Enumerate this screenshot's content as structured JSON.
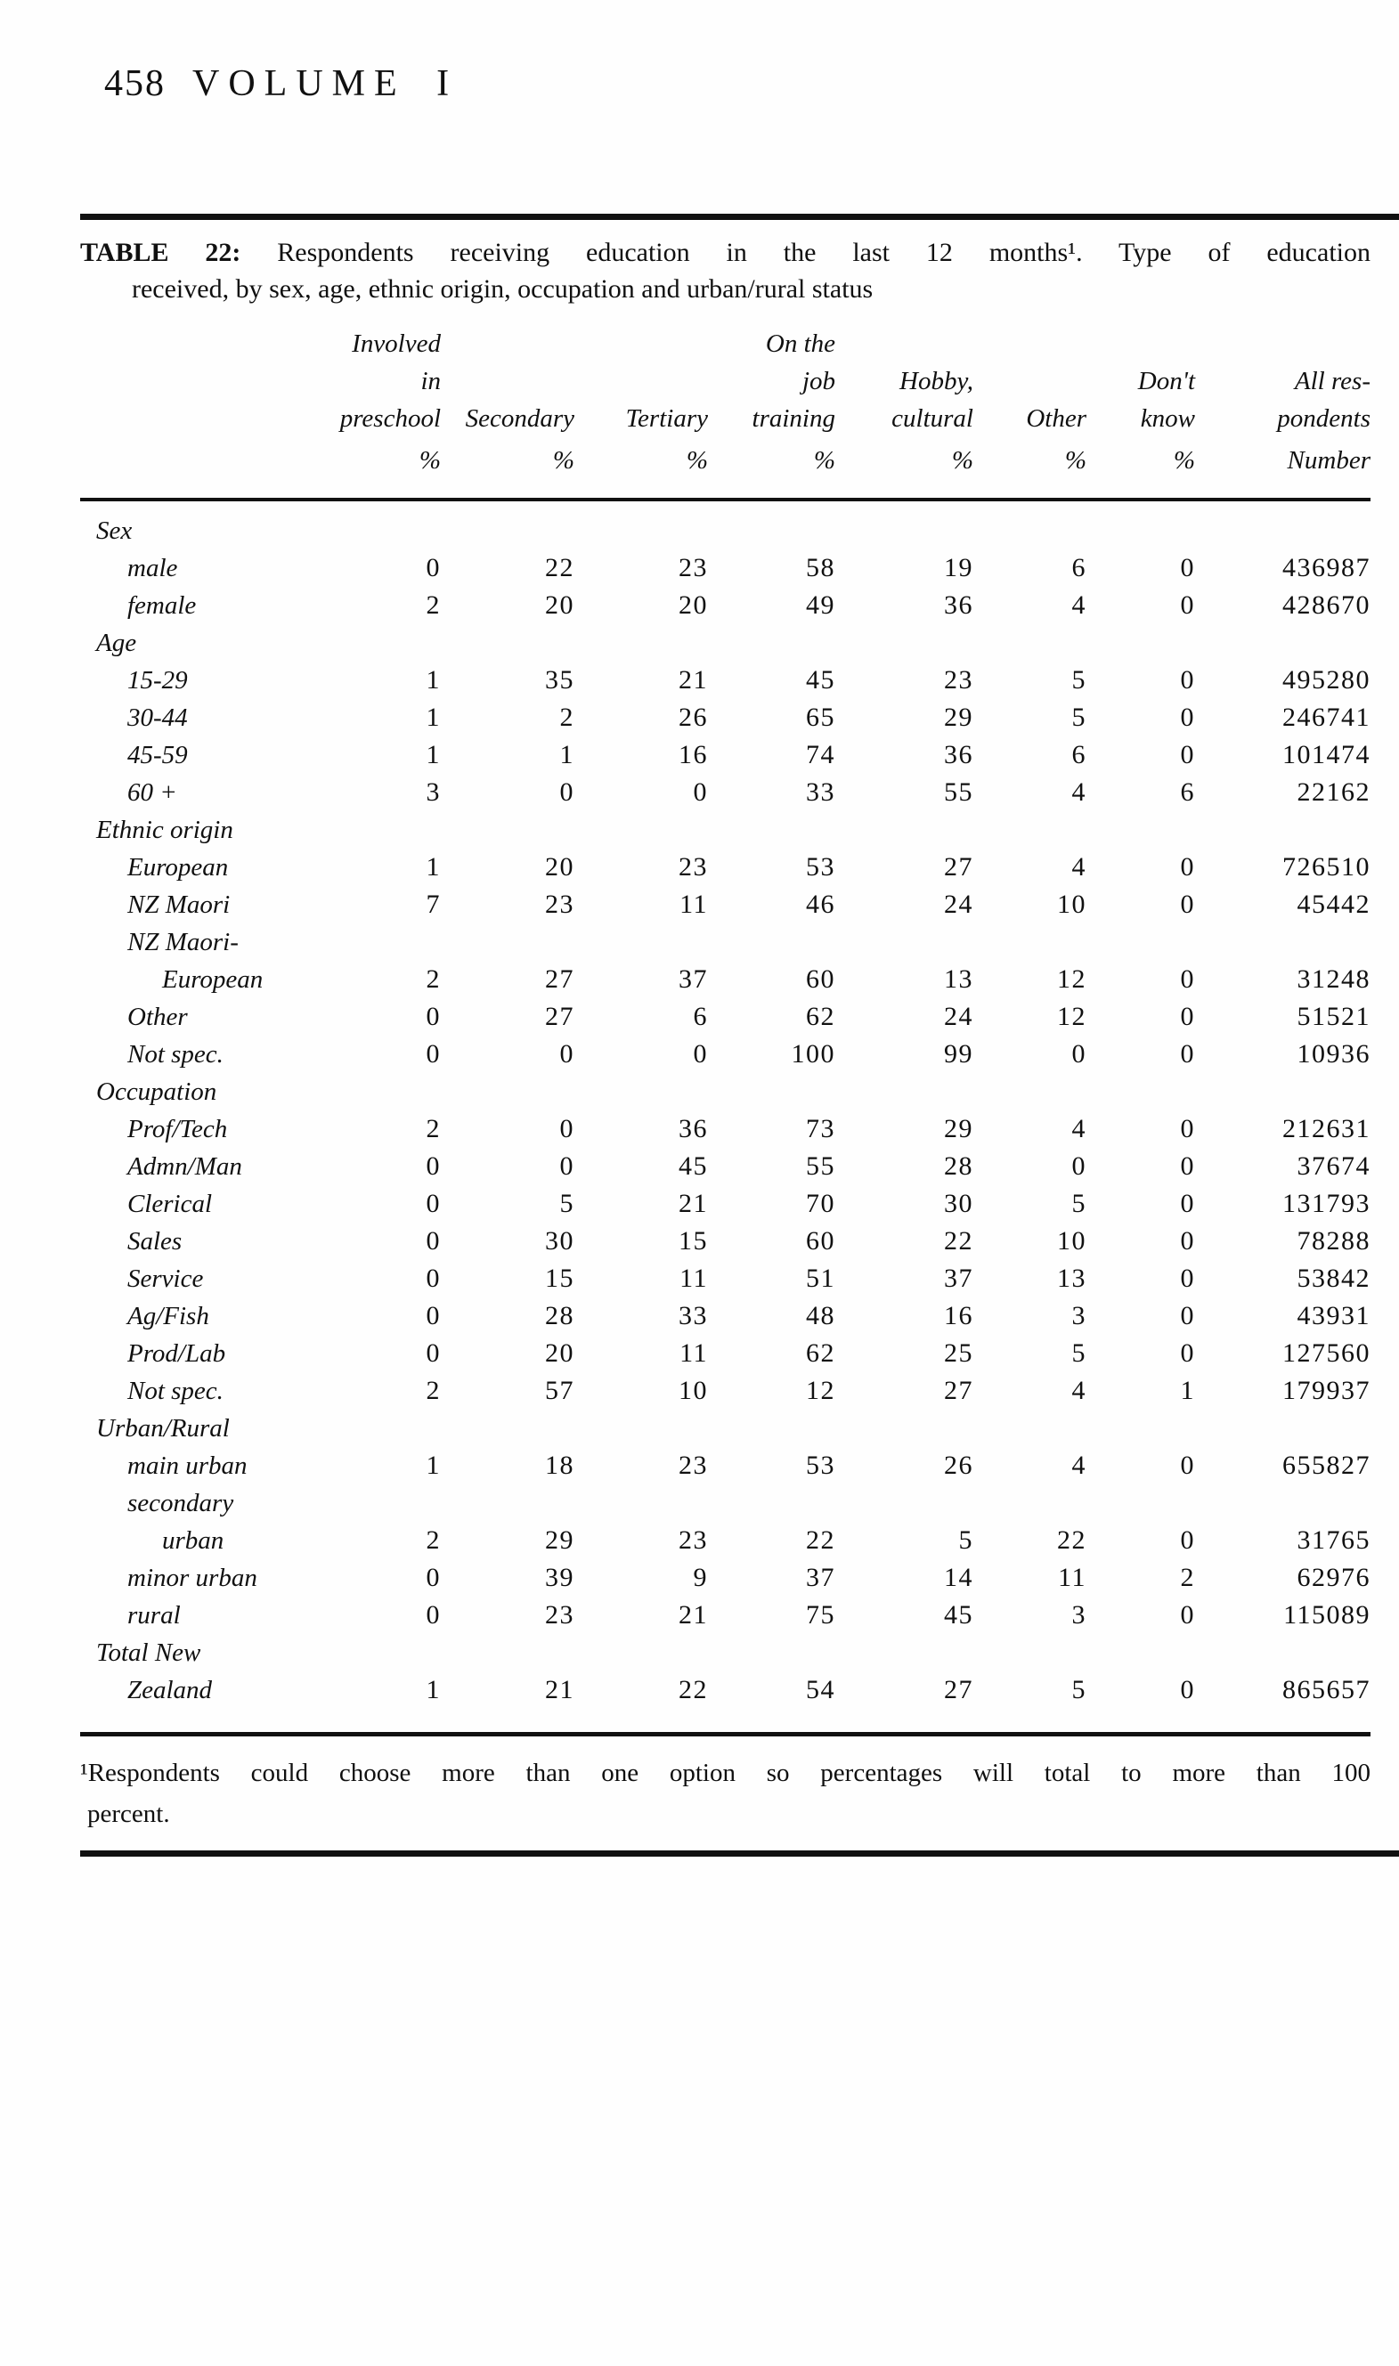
{
  "page": {
    "page_number": "458",
    "volume": "VOLUME I",
    "title_label": "TABLE 22:",
    "title_line1_rest": "Respondents receiving education in the last 12 months¹. Type of education",
    "title_line2": "received, by sex, age, ethnic origin, occupation and urban/rural status",
    "footnote_line1": "¹Respondents could choose more than one option so percentages will total to more than 100",
    "footnote_line2": "percent."
  },
  "table": {
    "header_rows": [
      [
        "Involved",
        "",
        "",
        "On the",
        "",
        "",
        "",
        ""
      ],
      [
        "in",
        "",
        "",
        "job",
        "Hobby,",
        "",
        "Don't",
        "All res-"
      ],
      [
        "preschool",
        "Secondary",
        "Tertiary",
        "training",
        "cultural",
        "Other",
        "know",
        "pondents"
      ]
    ],
    "unit_row": [
      "%",
      "%",
      "%",
      "%",
      "%",
      "%",
      "%",
      "Number"
    ],
    "rows": [
      {
        "label": "Sex",
        "indent": 0,
        "values": null
      },
      {
        "label": "male",
        "indent": 1,
        "values": [
          "0",
          "22",
          "23",
          "58",
          "19",
          "6",
          "0",
          "436987"
        ]
      },
      {
        "label": "female",
        "indent": 1,
        "values": [
          "2",
          "20",
          "20",
          "49",
          "36",
          "4",
          "0",
          "428670"
        ]
      },
      {
        "label": "Age",
        "indent": 0,
        "values": null
      },
      {
        "label": "15-29",
        "indent": 1,
        "values": [
          "1",
          "35",
          "21",
          "45",
          "23",
          "5",
          "0",
          "495280"
        ]
      },
      {
        "label": "30-44",
        "indent": 1,
        "values": [
          "1",
          "2",
          "26",
          "65",
          "29",
          "5",
          "0",
          "246741"
        ]
      },
      {
        "label": "45-59",
        "indent": 1,
        "values": [
          "1",
          "1",
          "16",
          "74",
          "36",
          "6",
          "0",
          "101474"
        ]
      },
      {
        "label": "60 +",
        "indent": 1,
        "values": [
          "3",
          "0",
          "0",
          "33",
          "55",
          "4",
          "6",
          "22162"
        ]
      },
      {
        "label": "Ethnic origin",
        "indent": 0,
        "values": null
      },
      {
        "label": "European",
        "indent": 1,
        "values": [
          "1",
          "20",
          "23",
          "53",
          "27",
          "4",
          "0",
          "726510"
        ]
      },
      {
        "label": "NZ Maori",
        "indent": 1,
        "values": [
          "7",
          "23",
          "11",
          "46",
          "24",
          "10",
          "0",
          "45442"
        ]
      },
      {
        "label": "NZ Maori-",
        "indent": 1,
        "values": null
      },
      {
        "label": "European",
        "indent": 2,
        "values": [
          "2",
          "27",
          "37",
          "60",
          "13",
          "12",
          "0",
          "31248"
        ]
      },
      {
        "label": "Other",
        "indent": 1,
        "values": [
          "0",
          "27",
          "6",
          "62",
          "24",
          "12",
          "0",
          "51521"
        ]
      },
      {
        "label": "Not spec.",
        "indent": 1,
        "values": [
          "0",
          "0",
          "0",
          "100",
          "99",
          "0",
          "0",
          "10936"
        ]
      },
      {
        "label": "Occupation",
        "indent": 0,
        "values": null
      },
      {
        "label": "Prof/Tech",
        "indent": 1,
        "values": [
          "2",
          "0",
          "36",
          "73",
          "29",
          "4",
          "0",
          "212631"
        ]
      },
      {
        "label": "Admn/Man",
        "indent": 1,
        "values": [
          "0",
          "0",
          "45",
          "55",
          "28",
          "0",
          "0",
          "37674"
        ]
      },
      {
        "label": "Clerical",
        "indent": 1,
        "values": [
          "0",
          "5",
          "21",
          "70",
          "30",
          "5",
          "0",
          "131793"
        ]
      },
      {
        "label": "Sales",
        "indent": 1,
        "values": [
          "0",
          "30",
          "15",
          "60",
          "22",
          "10",
          "0",
          "78288"
        ]
      },
      {
        "label": "Service",
        "indent": 1,
        "values": [
          "0",
          "15",
          "11",
          "51",
          "37",
          "13",
          "0",
          "53842"
        ]
      },
      {
        "label": "Ag/Fish",
        "indent": 1,
        "values": [
          "0",
          "28",
          "33",
          "48",
          "16",
          "3",
          "0",
          "43931"
        ]
      },
      {
        "label": "Prod/Lab",
        "indent": 1,
        "values": [
          "0",
          "20",
          "11",
          "62",
          "25",
          "5",
          "0",
          "127560"
        ]
      },
      {
        "label": "Not spec.",
        "indent": 1,
        "values": [
          "2",
          "57",
          "10",
          "12",
          "27",
          "4",
          "1",
          "179937"
        ]
      },
      {
        "label": "Urban/Rural",
        "indent": 0,
        "values": null
      },
      {
        "label": "main urban",
        "indent": 1,
        "values": [
          "1",
          "18",
          "23",
          "53",
          "26",
          "4",
          "0",
          "655827"
        ]
      },
      {
        "label": "secondary",
        "indent": 1,
        "values": null
      },
      {
        "label": "urban",
        "indent": 2,
        "values": [
          "2",
          "29",
          "23",
          "22",
          "5",
          "22",
          "0",
          "31765"
        ]
      },
      {
        "label": "minor urban",
        "indent": 1,
        "values": [
          "0",
          "39",
          "9",
          "37",
          "14",
          "11",
          "2",
          "62976"
        ]
      },
      {
        "label": "rural",
        "indent": 1,
        "values": [
          "0",
          "23",
          "21",
          "75",
          "45",
          "3",
          "0",
          "115089"
        ]
      },
      {
        "label": "Total New",
        "indent": 0,
        "values": null
      },
      {
        "label": "Zealand",
        "indent": 1,
        "values": [
          "1",
          "21",
          "22",
          "54",
          "27",
          "5",
          "0",
          "865657"
        ]
      }
    ]
  }
}
